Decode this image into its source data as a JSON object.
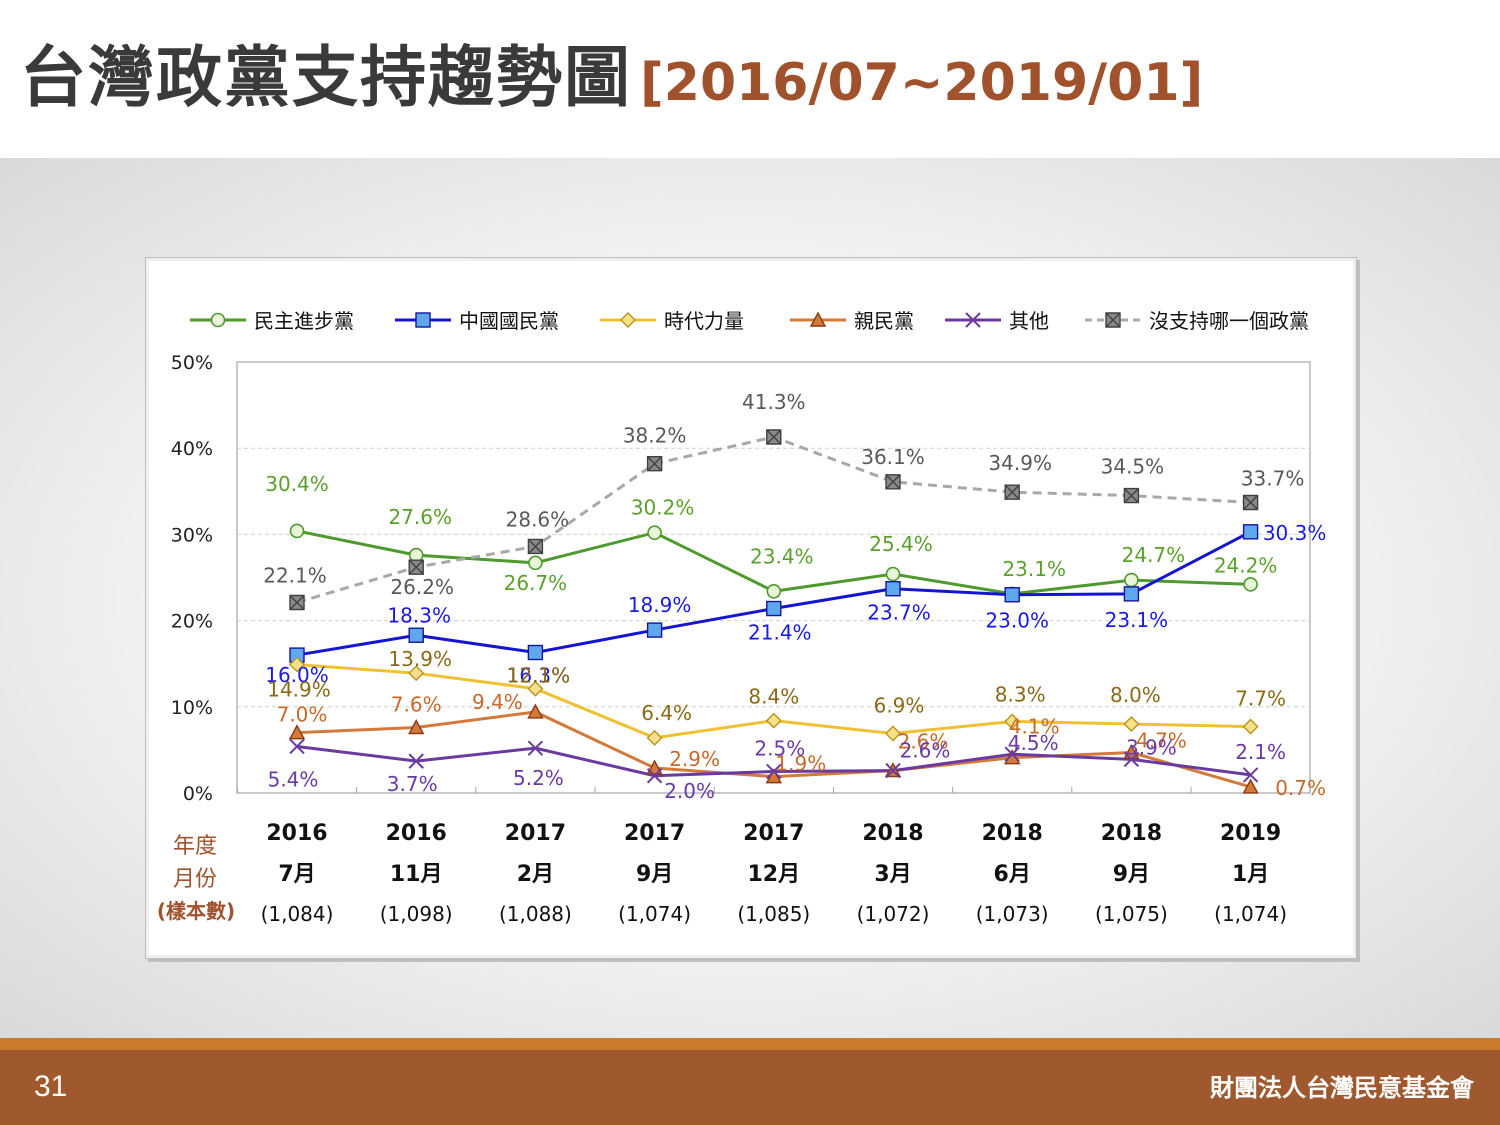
{
  "title": {
    "main": "台灣政黨支持趨勢圖",
    "range": "[2016/07~2019/01]"
  },
  "footer": {
    "page": "31",
    "org": "財團法人台灣民意基金會"
  },
  "x_header": {
    "year": "年度",
    "month": "月份",
    "sample": "(樣本數)"
  },
  "chart_data": {
    "type": "line",
    "ylim": [
      0,
      50
    ],
    "yticks": [
      "0%",
      "10%",
      "20%",
      "30%",
      "40%",
      "50%"
    ],
    "years": [
      "2016",
      "2016",
      "2017",
      "2017",
      "2017",
      "2018",
      "2018",
      "2018",
      "2019"
    ],
    "months": [
      "7月",
      "11月",
      "2月",
      "9月",
      "12月",
      "3月",
      "6月",
      "9月",
      "1月"
    ],
    "samples": [
      "(1,084)",
      "(1,098)",
      "(1,088)",
      "(1,074)",
      "(1,085)",
      "(1,072)",
      "(1,073)",
      "(1,075)",
      "(1,074)"
    ],
    "series": [
      {
        "name": "民主進步黨",
        "color": "#4e9a2e",
        "label_color": "#5aa02c",
        "marker": "circle",
        "dash": false,
        "values": [
          30.4,
          27.6,
          26.7,
          30.2,
          23.4,
          25.4,
          23.1,
          24.7,
          24.2
        ],
        "labels": [
          "30.4%",
          "27.6%",
          "26.7%",
          "30.2%",
          "23.4%",
          "25.4%",
          "23.1%",
          "24.7%",
          "24.2%"
        ]
      },
      {
        "name": "中國國民黨",
        "color": "#1515d0",
        "label_color": "#1a1ae0",
        "marker": "square",
        "dash": false,
        "values": [
          16.0,
          18.3,
          16.3,
          18.9,
          21.4,
          23.7,
          23.0,
          23.1,
          30.3
        ],
        "labels": [
          "16.0%",
          "18.3%",
          "16.3%",
          "18.9%",
          "21.4%",
          "23.7%",
          "23.0%",
          "23.1%",
          "30.3%"
        ]
      },
      {
        "name": "時代力量",
        "color": "#f0c030",
        "label_color": "#8a6a14",
        "marker": "diamond",
        "dash": false,
        "values": [
          14.9,
          13.9,
          12.1,
          6.4,
          8.4,
          6.9,
          8.3,
          8.0,
          7.7
        ],
        "labels": [
          "14.9%",
          "13.9%",
          "12.1%",
          "6.4%",
          "8.4%",
          "6.9%",
          "8.3%",
          "8.0%",
          "7.7%"
        ]
      },
      {
        "name": "親民黨",
        "color": "#d37a3a",
        "label_color": "#c9692a",
        "marker": "triangle",
        "dash": false,
        "values": [
          7.0,
          7.6,
          9.4,
          2.9,
          1.9,
          2.6,
          4.1,
          4.7,
          0.7
        ],
        "labels": [
          "7.0%",
          "7.6%",
          "9.4%",
          "2.9%",
          "1.9%",
          "2.6%",
          "4.1%",
          "4.7%",
          "0.7%"
        ]
      },
      {
        "name": "其他",
        "color": "#6a3aa0",
        "label_color": "#6a3aa8",
        "marker": "x",
        "dash": false,
        "values": [
          5.4,
          3.7,
          5.2,
          2.0,
          2.5,
          2.6,
          4.5,
          3.9,
          2.1
        ],
        "labels": [
          "5.4%",
          "3.7%",
          "5.2%",
          "2.0%",
          "2.5%",
          "2.6%",
          "4.5%",
          "3.9%",
          "2.1%"
        ]
      },
      {
        "name": "沒支持哪一個政黨",
        "color": "#a8a8a8",
        "label_color": "#595959",
        "marker": "xsquare",
        "dash": true,
        "values": [
          22.1,
          26.2,
          28.6,
          38.2,
          41.3,
          36.1,
          34.9,
          34.5,
          33.7
        ],
        "labels": [
          "22.1%",
          "26.2%",
          "28.6%",
          "38.2%",
          "41.3%",
          "36.1%",
          "34.9%",
          "34.5%",
          "33.7%"
        ]
      }
    ]
  }
}
